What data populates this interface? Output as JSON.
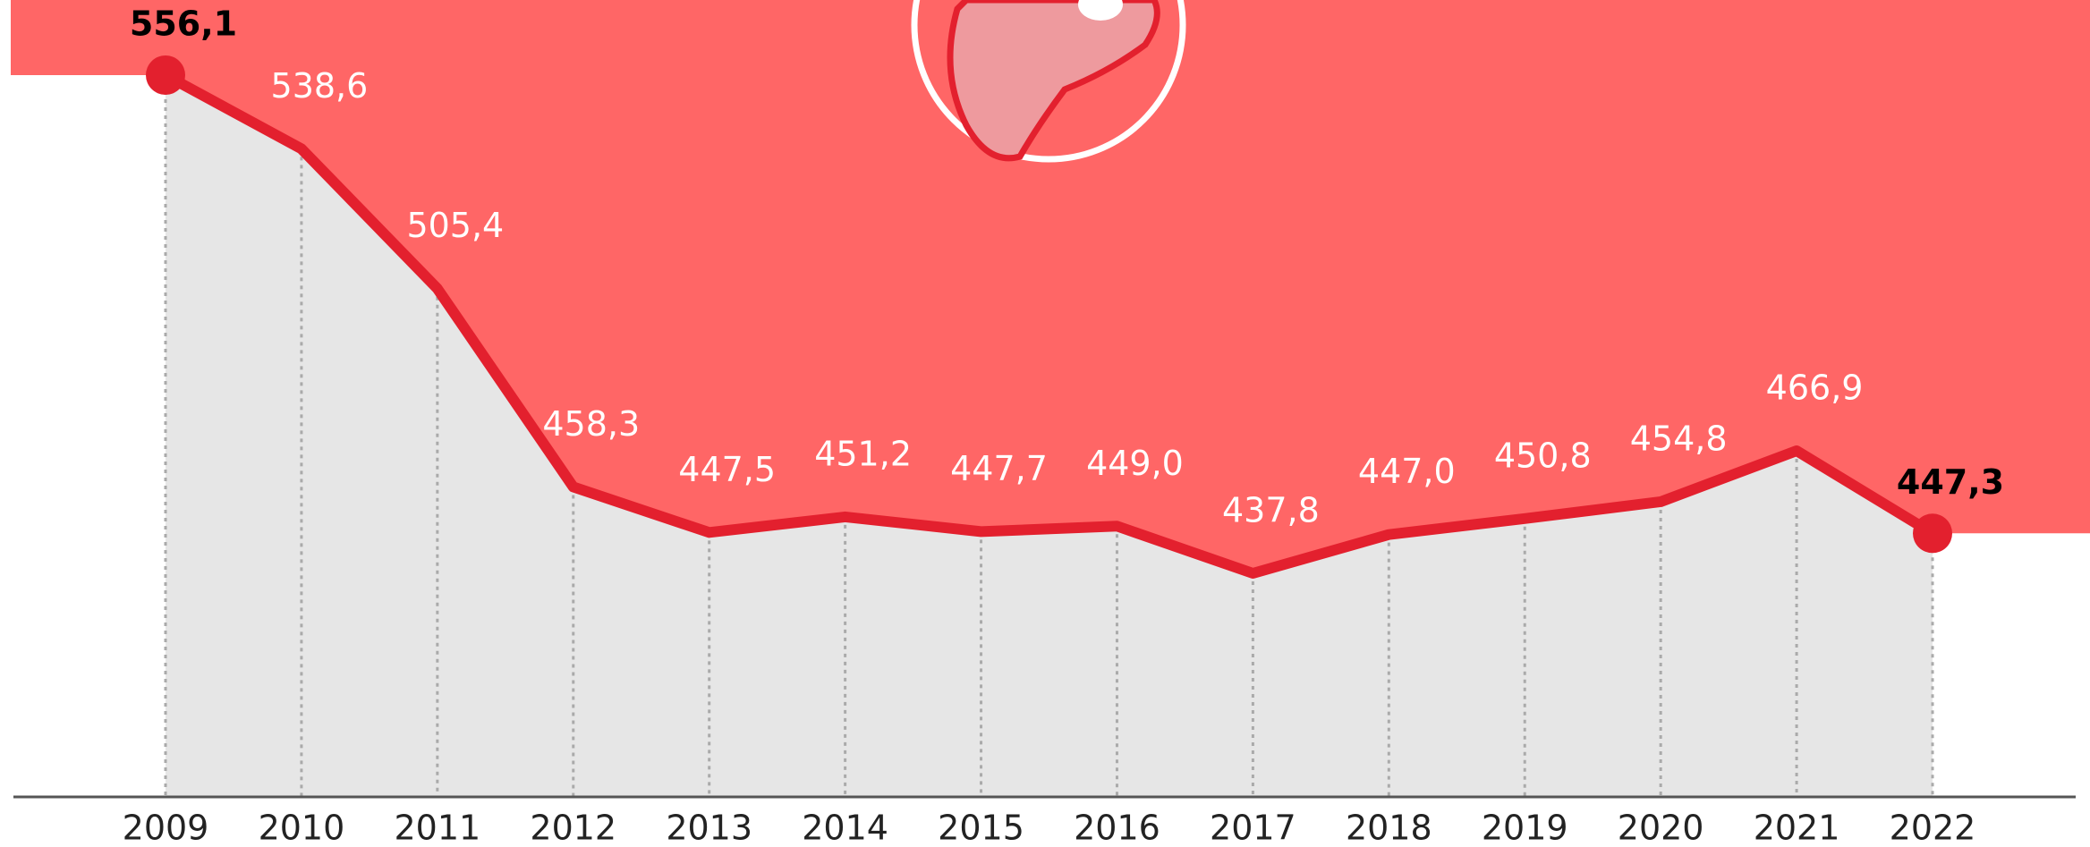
{
  "chart_data": {
    "type": "line",
    "categories": [
      "2009",
      "2010",
      "2011",
      "2012",
      "2013",
      "2014",
      "2015",
      "2016",
      "2017",
      "2018",
      "2019",
      "2020",
      "2021",
      "2022"
    ],
    "values": [
      556.1,
      538.6,
      505.4,
      458.3,
      447.5,
      451.2,
      447.7,
      449.0,
      437.8,
      447.0,
      450.8,
      454.8,
      466.9,
      447.3
    ],
    "value_labels": [
      "556,1",
      "538,6",
      "505,4",
      "458,3",
      "447,5",
      "451,2",
      "447,7",
      "449,0",
      "437,8",
      "447,0",
      "450,8",
      "454,8",
      "466,9",
      "447,3"
    ],
    "color": "#e3202e"
  }
}
